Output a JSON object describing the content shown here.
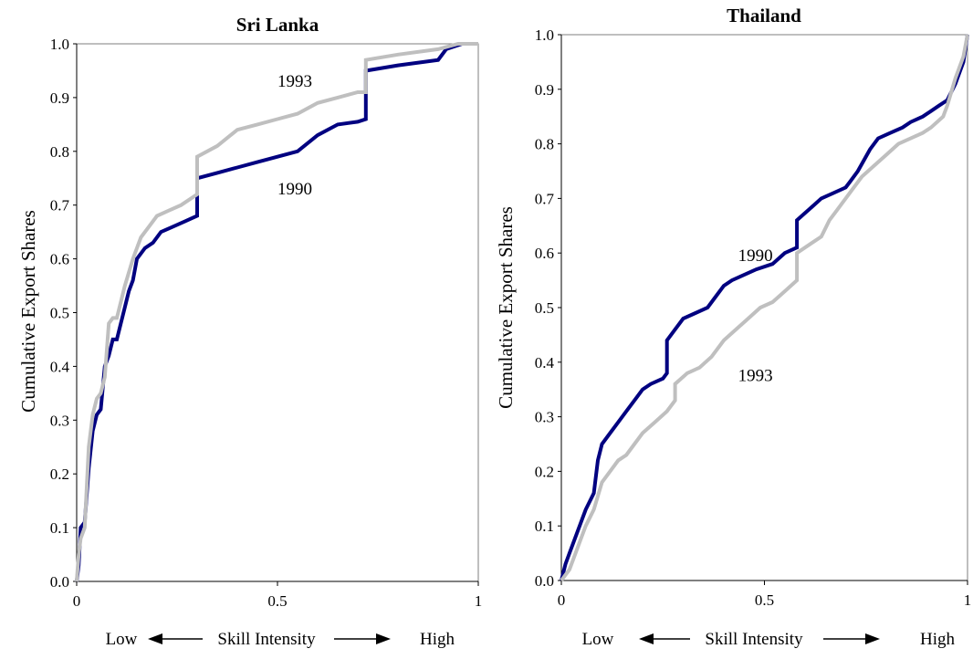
{
  "chart_data": [
    {
      "type": "line",
      "title": "Sri Lanka",
      "ylabel": "Cumulative Export Shares",
      "xlabel": {
        "low": "Low",
        "middle": "Skill Intensity",
        "high": "High"
      },
      "xlim": [
        0,
        1
      ],
      "ylim": [
        0,
        1
      ],
      "xticks": [
        "0",
        "0.5",
        "1"
      ],
      "yticks": [
        "0.0",
        "0.1",
        "0.2",
        "0.3",
        "0.4",
        "0.5",
        "0.6",
        "0.7",
        "0.8",
        "0.9",
        "1.0"
      ],
      "grid": false,
      "legend": "none",
      "annotations": [
        {
          "text": "1993",
          "x": 0.5,
          "y": 0.92
        },
        {
          "text": "1990",
          "x": 0.5,
          "y": 0.72
        }
      ],
      "series": [
        {
          "name": "1990",
          "color": "#000080",
          "x": [
            0,
            0.005,
            0.01,
            0.02,
            0.03,
            0.04,
            0.05,
            0.06,
            0.07,
            0.08,
            0.09,
            0.1,
            0.12,
            0.13,
            0.14,
            0.15,
            0.17,
            0.19,
            0.21,
            0.24,
            0.27,
            0.3,
            0.3,
            0.35,
            0.4,
            0.45,
            0.5,
            0.55,
            0.6,
            0.65,
            0.7,
            0.72,
            0.72,
            0.8,
            0.9,
            0.92,
            0.96,
            1.0
          ],
          "y": [
            0,
            0.03,
            0.1,
            0.11,
            0.21,
            0.28,
            0.31,
            0.32,
            0.4,
            0.42,
            0.45,
            0.45,
            0.51,
            0.54,
            0.56,
            0.6,
            0.62,
            0.63,
            0.65,
            0.66,
            0.67,
            0.68,
            0.75,
            0.76,
            0.77,
            0.78,
            0.79,
            0.8,
            0.83,
            0.85,
            0.855,
            0.86,
            0.95,
            0.96,
            0.97,
            0.99,
            1.0,
            1.0
          ]
        },
        {
          "name": "1993",
          "color": "#bfbfbf",
          "x": [
            0,
            0.005,
            0.01,
            0.02,
            0.03,
            0.04,
            0.05,
            0.06,
            0.07,
            0.08,
            0.09,
            0.1,
            0.12,
            0.14,
            0.16,
            0.18,
            0.2,
            0.23,
            0.26,
            0.3,
            0.3,
            0.35,
            0.4,
            0.45,
            0.5,
            0.55,
            0.6,
            0.65,
            0.7,
            0.72,
            0.72,
            0.8,
            0.9,
            0.95,
            1.0
          ],
          "y": [
            0,
            0.05,
            0.08,
            0.1,
            0.25,
            0.31,
            0.34,
            0.35,
            0.38,
            0.48,
            0.49,
            0.49,
            0.55,
            0.6,
            0.64,
            0.66,
            0.68,
            0.69,
            0.7,
            0.72,
            0.79,
            0.81,
            0.84,
            0.85,
            0.86,
            0.87,
            0.89,
            0.9,
            0.91,
            0.91,
            0.97,
            0.98,
            0.99,
            1.0,
            1.0
          ]
        }
      ]
    },
    {
      "type": "line",
      "title": "Thailand",
      "ylabel": "Cumulative Export Shares",
      "xlabel": {
        "low": "Low",
        "middle": "Skill Intensity",
        "high": "High"
      },
      "xlim": [
        0,
        1
      ],
      "ylim": [
        0,
        1
      ],
      "xticks": [
        "0",
        "0.5",
        "1"
      ],
      "yticks": [
        "0.0",
        "0.1",
        "0.2",
        "0.3",
        "0.4",
        "0.5",
        "0.6",
        "0.7",
        "0.8",
        "0.9",
        "1.0"
      ],
      "grid": false,
      "legend": "none",
      "annotations": [
        {
          "text": "1990",
          "x": 0.435,
          "y": 0.585
        },
        {
          "text": "1993",
          "x": 0.435,
          "y": 0.365
        }
      ],
      "series": [
        {
          "name": "1990",
          "color": "#000080",
          "x": [
            0,
            0.01,
            0.02,
            0.04,
            0.06,
            0.08,
            0.09,
            0.1,
            0.12,
            0.14,
            0.16,
            0.18,
            0.2,
            0.22,
            0.25,
            0.26,
            0.26,
            0.28,
            0.3,
            0.33,
            0.36,
            0.38,
            0.4,
            0.42,
            0.45,
            0.48,
            0.52,
            0.55,
            0.58,
            0.58,
            0.61,
            0.64,
            0.67,
            0.7,
            0.71,
            0.73,
            0.76,
            0.78,
            0.81,
            0.84,
            0.86,
            0.89,
            0.91,
            0.93,
            0.95,
            0.97,
            0.99,
            1.0
          ],
          "y": [
            0,
            0.03,
            0.05,
            0.09,
            0.13,
            0.16,
            0.22,
            0.25,
            0.27,
            0.29,
            0.31,
            0.33,
            0.35,
            0.36,
            0.37,
            0.38,
            0.44,
            0.46,
            0.48,
            0.49,
            0.5,
            0.52,
            0.54,
            0.55,
            0.56,
            0.57,
            0.58,
            0.6,
            0.61,
            0.66,
            0.68,
            0.7,
            0.71,
            0.72,
            0.73,
            0.75,
            0.79,
            0.81,
            0.82,
            0.83,
            0.84,
            0.85,
            0.86,
            0.87,
            0.88,
            0.91,
            0.95,
            1.0
          ]
        },
        {
          "name": "1993",
          "color": "#bfbfbf",
          "x": [
            0,
            0.02,
            0.04,
            0.06,
            0.08,
            0.1,
            0.12,
            0.14,
            0.16,
            0.18,
            0.2,
            0.23,
            0.26,
            0.28,
            0.28,
            0.31,
            0.34,
            0.37,
            0.4,
            0.43,
            0.46,
            0.49,
            0.52,
            0.55,
            0.58,
            0.58,
            0.6,
            0.62,
            0.64,
            0.66,
            0.68,
            0.7,
            0.72,
            0.74,
            0.77,
            0.8,
            0.83,
            0.86,
            0.89,
            0.91,
            0.94,
            0.95,
            0.97,
            0.99,
            1.0
          ],
          "y": [
            0,
            0.02,
            0.06,
            0.1,
            0.13,
            0.18,
            0.2,
            0.22,
            0.23,
            0.25,
            0.27,
            0.29,
            0.31,
            0.33,
            0.36,
            0.38,
            0.39,
            0.41,
            0.44,
            0.46,
            0.48,
            0.5,
            0.51,
            0.53,
            0.55,
            0.6,
            0.61,
            0.62,
            0.63,
            0.66,
            0.68,
            0.7,
            0.72,
            0.74,
            0.76,
            0.78,
            0.8,
            0.81,
            0.82,
            0.83,
            0.85,
            0.87,
            0.92,
            0.96,
            1.0
          ]
        }
      ]
    }
  ]
}
